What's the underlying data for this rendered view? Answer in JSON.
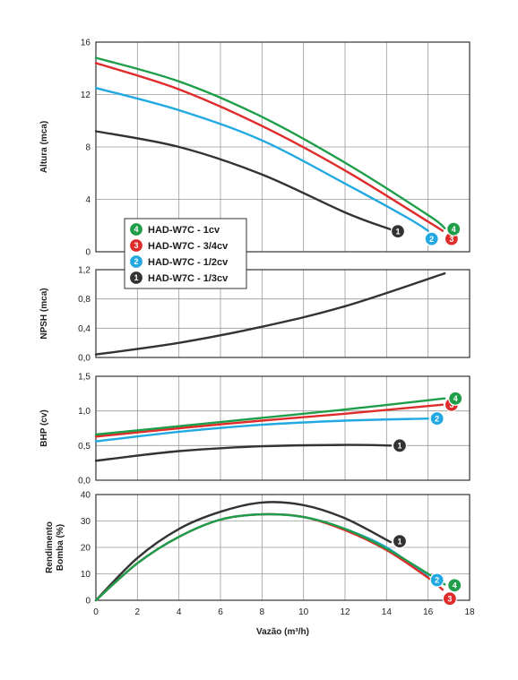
{
  "chart_data": {
    "type": "line",
    "xlabel": "Vazão (m³/h)",
    "x_ticks": [
      "0",
      "2",
      "4",
      "6",
      "8",
      "10",
      "12",
      "14",
      "16",
      "18"
    ],
    "xlim": [
      0,
      18
    ],
    "legend": [
      {
        "badge": "4",
        "label": "HAD-W7C - 1cv",
        "color": "#1f9e4a"
      },
      {
        "badge": "3",
        "label": "HAD-W7C - 3/4cv",
        "color": "#e02b2b"
      },
      {
        "badge": "2",
        "label": "HAD-W7C - 1/2cv",
        "color": "#22a9e2"
      },
      {
        "badge": "1",
        "label": "HAD-W7C - 1/3cv",
        "color": "#333333"
      }
    ],
    "panels": [
      {
        "id": "altura",
        "ylabel": "Altura (mca)",
        "ylim": [
          0,
          16
        ],
        "y_ticks": [
          "0",
          "4",
          "8",
          "12",
          "16"
        ],
        "y_tick_values": [
          0,
          4,
          8,
          12,
          16
        ],
        "series": [
          {
            "badge": "4",
            "color": "#1f9e4a",
            "x": [
              0,
              4,
              8,
              12,
              16,
              16.8
            ],
            "y": [
              14.8,
              13.0,
              10.3,
              6.8,
              2.8,
              1.8
            ]
          },
          {
            "badge": "3",
            "color": "#e02b2b",
            "x": [
              0,
              4,
              8,
              12,
              16,
              16.7
            ],
            "y": [
              14.4,
              12.4,
              9.6,
              6.2,
              2.3,
              1.6
            ]
          },
          {
            "badge": "2",
            "color": "#22a9e2",
            "x": [
              0,
              4,
              8,
              12,
              15,
              16.0
            ],
            "y": [
              12.5,
              10.8,
              8.5,
              5.2,
              2.6,
              1.6
            ]
          },
          {
            "badge": "1",
            "color": "#333333",
            "x": [
              0,
              4,
              8,
              12,
              14.2
            ],
            "y": [
              9.2,
              8.0,
              5.9,
              3.0,
              1.7
            ]
          }
        ]
      },
      {
        "id": "npsh",
        "ylabel": "NPSH (mca)",
        "ylim": [
          0,
          1.2
        ],
        "y_ticks": [
          "0,0",
          "0,4",
          "0,8",
          "1,2"
        ],
        "y_tick_values": [
          0,
          0.4,
          0.8,
          1.2
        ],
        "series": [
          {
            "color": "#333333",
            "x": [
              0,
              4,
              8,
              12,
              16.8
            ],
            "y": [
              0.04,
              0.2,
              0.42,
              0.7,
              1.15
            ]
          }
        ]
      },
      {
        "id": "bhp",
        "ylabel": "BHP (cv)",
        "ylim": [
          0,
          1.5
        ],
        "y_ticks": [
          "0,0",
          "0,5",
          "1,0",
          "1,5"
        ],
        "y_tick_values": [
          0,
          0.5,
          1.0,
          1.5
        ],
        "series": [
          {
            "badge": "4",
            "color": "#1f9e4a",
            "x": [
              0,
              4,
              8,
              12,
              16.8
            ],
            "y": [
              0.66,
              0.78,
              0.9,
              1.02,
              1.18
            ]
          },
          {
            "badge": "3",
            "color": "#e02b2b",
            "x": [
              0,
              4,
              8,
              12,
              16.7
            ],
            "y": [
              0.63,
              0.75,
              0.86,
              0.96,
              1.09
            ]
          },
          {
            "badge": "2",
            "color": "#22a9e2",
            "x": [
              0,
              4,
              8,
              12,
              16.0
            ],
            "y": [
              0.56,
              0.7,
              0.8,
              0.86,
              0.89
            ]
          },
          {
            "badge": "1",
            "color": "#333333",
            "x": [
              0,
              4,
              8,
              12,
              14.2
            ],
            "y": [
              0.28,
              0.42,
              0.49,
              0.51,
              0.5
            ]
          }
        ]
      },
      {
        "id": "rendimento",
        "ylabel": "Rendimento Bomba (%)",
        "ylabel_lines": [
          "Rendimento",
          "Bomba (%)"
        ],
        "ylim": [
          0,
          40
        ],
        "y_ticks": [
          "0",
          "10",
          "20",
          "30",
          "40"
        ],
        "y_tick_values": [
          0,
          10,
          20,
          30,
          40
        ],
        "series": [
          {
            "badge": "4",
            "color": "#1f9e4a",
            "x": [
              0,
              2,
              4,
              6,
              8,
              10,
              12,
              14,
              16,
              16.8
            ],
            "y": [
              0,
              14,
              24,
              30.5,
              32.5,
              31.5,
              27,
              19.5,
              10,
              6
            ]
          },
          {
            "badge": "3",
            "color": "#e02b2b",
            "x": [
              0,
              2,
              4,
              6,
              8,
              10,
              12,
              14,
              16,
              16.7
            ],
            "y": [
              0,
              14,
              24,
              30.5,
              32.5,
              31.5,
              26.5,
              19,
              8.5,
              4
            ]
          },
          {
            "badge": "2",
            "color": "#22a9e2",
            "x": [
              0,
              2,
              4,
              6,
              8,
              10,
              12,
              14,
              16
            ],
            "y": [
              0,
              14,
              24,
              30.5,
              32.5,
              31.5,
              27,
              20,
              9
            ]
          },
          {
            "badge": "1",
            "color": "#333333",
            "x": [
              0,
              2,
              4,
              6,
              8,
              10,
              12,
              14.2
            ],
            "y": [
              0,
              16,
              27,
              33.5,
              37,
              36,
              31,
              22
            ]
          }
        ]
      }
    ]
  }
}
